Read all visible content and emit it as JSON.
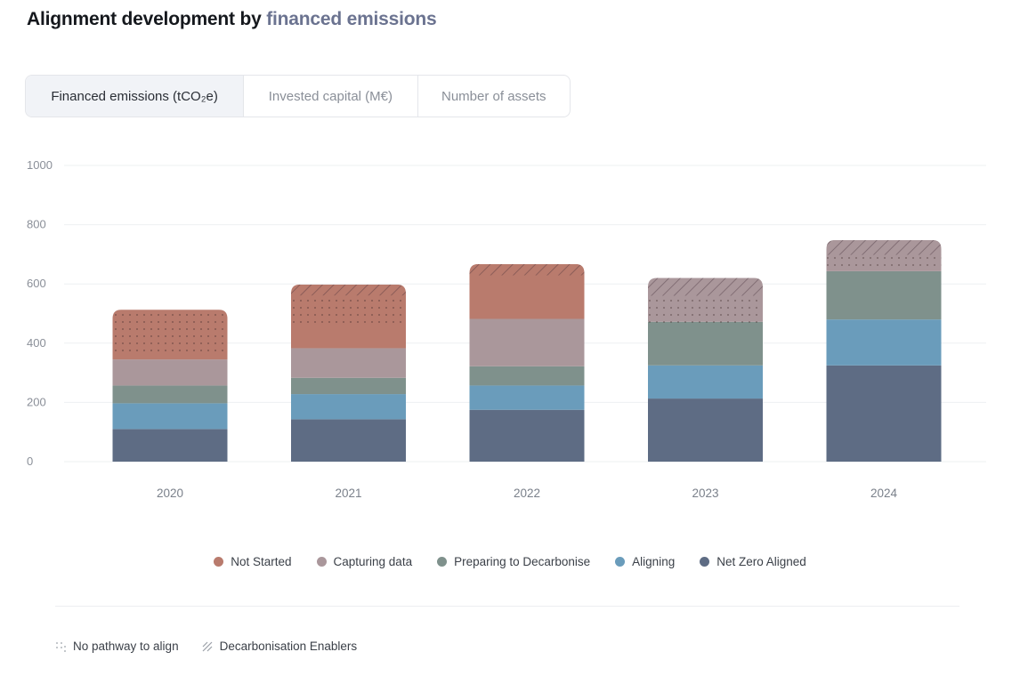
{
  "header": {
    "title_prefix": "Alignment development by",
    "title_accent": "financed emissions"
  },
  "tabs": [
    {
      "label": "Financed emissions (tCO₂e)",
      "active": true
    },
    {
      "label": "Invested capital (M€)",
      "active": false
    },
    {
      "label": "Number of assets",
      "active": false
    }
  ],
  "colors": {
    "not_started": "#b97b6d",
    "capturing_data": "#aa979b",
    "preparing": "#7f918c",
    "aligning": "#6a9cbb",
    "net_zero": "#5e6c84"
  },
  "chart_data": {
    "type": "bar",
    "stacked": true,
    "categories": [
      "2020",
      "2021",
      "2022",
      "2023",
      "2024"
    ],
    "ylim": [
      0,
      1000
    ],
    "yticks": [
      0,
      200,
      400,
      600,
      800,
      1000
    ],
    "grid": true,
    "legend_position": "bottom",
    "series": [
      {
        "name": "Net Zero Aligned",
        "key": "net_zero",
        "values": [
          110,
          143,
          175,
          213,
          325
        ]
      },
      {
        "name": "Aligning",
        "key": "aligning",
        "values": [
          87,
          85,
          82,
          112,
          155
        ]
      },
      {
        "name": "Preparing to Decarbonise",
        "key": "preparing",
        "values": [
          60,
          55,
          65,
          147,
          163
        ]
      },
      {
        "name": "Capturing data",
        "key": "capturing_data",
        "values": [
          88,
          100,
          160,
          148,
          105
        ]
      },
      {
        "name": "Not Started",
        "key": "not_started",
        "values": [
          168,
          215,
          185,
          0,
          0
        ]
      }
    ],
    "pattern_overlays": [
      {
        "name": "Decarbonisation Enablers",
        "pattern": "hatch",
        "values": [
          0,
          37,
          38,
          60,
          50
        ]
      },
      {
        "name": "No pathway to align",
        "pattern": "dots",
        "values": [
          150,
          110,
          10,
          100,
          50
        ]
      }
    ]
  },
  "legend": [
    {
      "label": "Not Started",
      "key": "not_started"
    },
    {
      "label": "Capturing data",
      "key": "capturing_data"
    },
    {
      "label": "Preparing to Decarbonise",
      "key": "preparing"
    },
    {
      "label": "Aligning",
      "key": "aligning"
    },
    {
      "label": "Net Zero Aligned",
      "key": "net_zero"
    }
  ],
  "pattern_legend": [
    {
      "label": "No pathway to align",
      "icon": "dots-pattern-icon"
    },
    {
      "label": "Decarbonisation Enablers",
      "icon": "hatch-pattern-icon"
    }
  ]
}
